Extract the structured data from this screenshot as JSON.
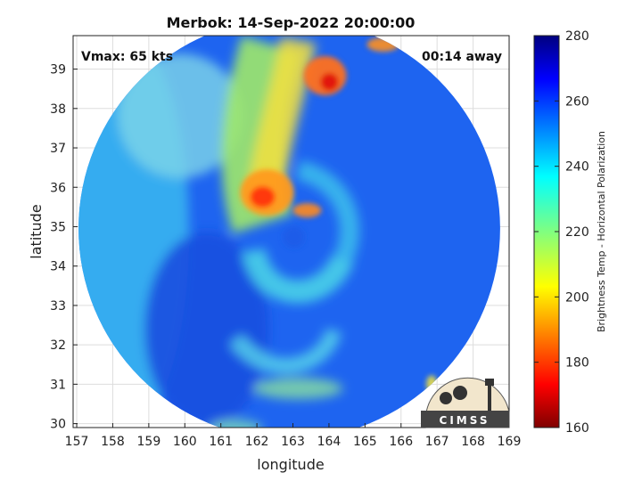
{
  "chart_data": {
    "type": "heatmap",
    "title": "Merbok: 14-Sep-2022 20:00:00",
    "xlabel": "longitude",
    "ylabel": "latitude",
    "xlim": [
      156.9,
      169
    ],
    "ylim": [
      29.9,
      39.85
    ],
    "xticks": [
      157,
      158,
      159,
      160,
      161,
      162,
      163,
      164,
      165,
      166,
      167,
      168,
      169
    ],
    "yticks": [
      30,
      31,
      32,
      33,
      34,
      35,
      36,
      37,
      38,
      39
    ],
    "grid": true,
    "annotations": {
      "vmax": "Vmax: 65 kts",
      "time_away": "00:14 away"
    },
    "colorbar": {
      "label": "Brightness Temp - Horizontal Polarization",
      "range": [
        160,
        280
      ],
      "ticks": [
        160,
        180,
        200,
        220,
        240,
        260,
        280
      ],
      "colormap": "jet"
    },
    "swath": {
      "center": [
        162.9,
        34.95
      ],
      "radius_deg": 5.85
    },
    "storm_center": [
      162.9,
      34.85
    ],
    "logo_text": "CIMSS"
  },
  "colors": {
    "background": "#ffffff",
    "grid": "#dddddd",
    "axis": "#222222",
    "swath_base": "#1e64f0"
  }
}
